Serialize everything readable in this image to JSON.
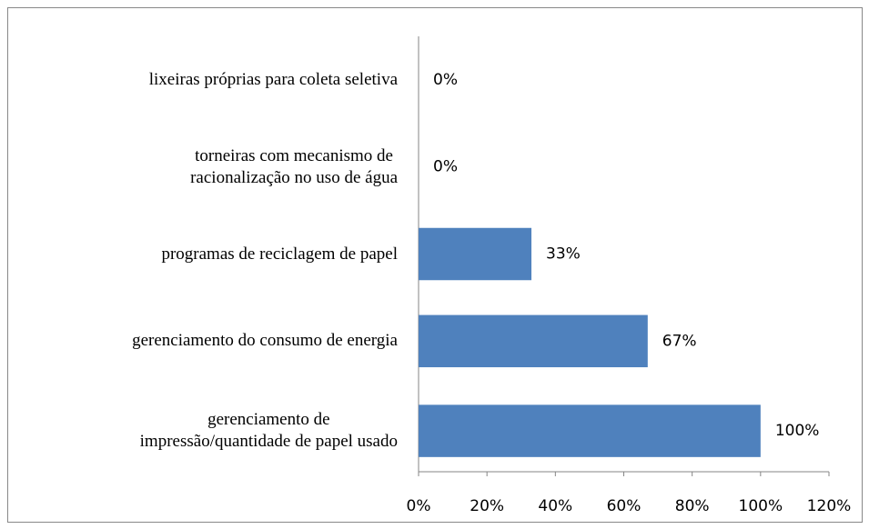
{
  "chart_data": {
    "type": "bar",
    "orientation": "horizontal",
    "categories": [
      "lixeiras próprias para coleta seletiva",
      "torneiras com mecanismo de \nracionalização no uso de água",
      "programas de reciclagem de papel",
      "gerenciamento do consumo de energia",
      "gerenciamento de \nimpressão/quantidade de papel usado"
    ],
    "values": [
      0,
      0,
      33,
      67,
      100
    ],
    "value_labels": [
      "0%",
      "0%",
      "33%",
      "67%",
      "100%"
    ],
    "color": "#4f81bd",
    "xlim": [
      0,
      120
    ],
    "xticks": [
      {
        "value": 0,
        "label": "0%"
      },
      {
        "value": 20,
        "label": "20%"
      },
      {
        "value": 40,
        "label": "40%"
      },
      {
        "value": 60,
        "label": "60%"
      },
      {
        "value": 80,
        "label": "80%"
      },
      {
        "value": 100,
        "label": "100%"
      },
      {
        "value": 120,
        "label": "120%"
      }
    ],
    "grid": false
  }
}
